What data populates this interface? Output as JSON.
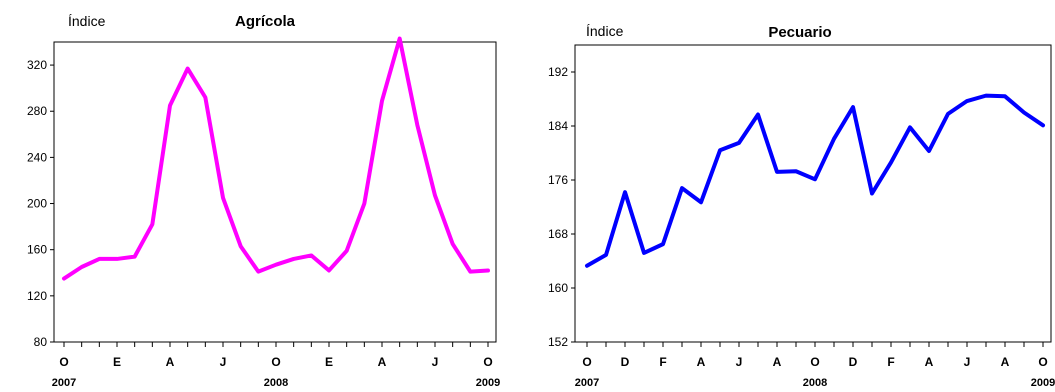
{
  "charts_meta": {
    "colors": {
      "agricola": "#ff00ff",
      "pecuario": "#0000ff",
      "axes": "#000000"
    }
  },
  "chart_data": [
    {
      "type": "line",
      "title": "Agrícola",
      "ylabel": "Índice",
      "xlabel": "",
      "x_month_labels": [
        "O",
        "E",
        "A",
        "J",
        "O",
        "E",
        "A",
        "J",
        "O"
      ],
      "x_year_labels": [
        "2007",
        "2008",
        "2009"
      ],
      "x_range": [
        "2007-10",
        "2009-10"
      ],
      "ylim": [
        80,
        340
      ],
      "yticks": [
        80,
        120,
        160,
        200,
        240,
        280,
        320
      ],
      "series": [
        {
          "name": "",
          "color": "#ff00ff",
          "x": [
            "2007-10",
            "2007-11",
            "2007-12",
            "2008-01",
            "2008-02",
            "2008-03",
            "2008-04",
            "2008-05",
            "2008-06",
            "2008-07",
            "2008-08",
            "2008-09",
            "2008-10",
            "2008-11",
            "2008-12",
            "2009-01",
            "2009-02",
            "2009-03",
            "2009-04",
            "2009-05",
            "2009-06",
            "2009-07",
            "2009-08",
            "2009-09",
            "2009-10"
          ],
          "values": [
            135,
            145,
            152,
            152,
            154,
            182,
            285,
            317,
            292,
            205,
            163,
            141,
            147,
            152,
            155,
            142,
            159,
            200,
            289,
            343,
            268,
            207,
            165,
            141,
            142
          ]
        }
      ]
    },
    {
      "type": "line",
      "title": "Pecuario",
      "ylabel": "Índice",
      "xlabel": "",
      "x_month_labels": [
        "O",
        "D",
        "F",
        "A",
        "J",
        "A",
        "O",
        "D",
        "F",
        "A",
        "J",
        "A",
        "O"
      ],
      "x_year_labels": [
        "2007",
        "2008",
        "2009"
      ],
      "x_range": [
        "2007-10",
        "2009-10"
      ],
      "ylim": [
        152,
        196
      ],
      "yticks": [
        152,
        160,
        168,
        176,
        184,
        192
      ],
      "series": [
        {
          "name": "",
          "color": "#0000ff",
          "x": [
            "2007-10",
            "2007-11",
            "2007-12",
            "2008-01",
            "2008-02",
            "2008-03",
            "2008-04",
            "2008-05",
            "2008-06",
            "2008-07",
            "2008-08",
            "2008-09",
            "2008-10",
            "2008-11",
            "2008-12",
            "2009-01",
            "2009-02",
            "2009-03",
            "2009-04",
            "2009-05",
            "2009-06",
            "2009-07",
            "2009-08",
            "2009-09",
            "2009-10"
          ],
          "values": [
            163.3,
            164.9,
            174.2,
            165.2,
            166.5,
            174.8,
            172.7,
            180.4,
            181.5,
            185.7,
            177.2,
            177.3,
            176.1,
            182.1,
            186.8,
            174.0,
            178.6,
            183.8,
            180.3,
            185.8,
            187.7,
            188.5,
            188.4,
            186.0,
            184.1
          ]
        }
      ]
    }
  ]
}
